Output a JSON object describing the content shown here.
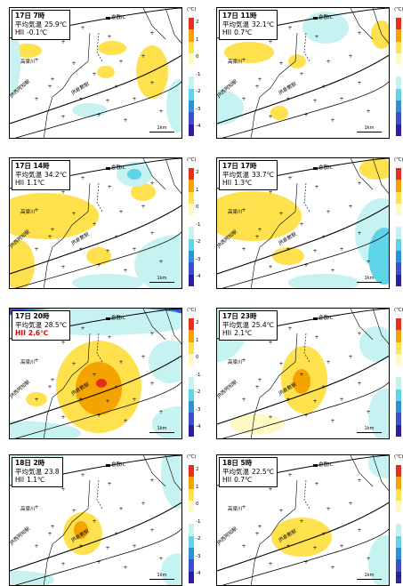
{
  "common": {
    "unit": "(℃)",
    "legend_ticks": [
      "2",
      "1",
      "0",
      "-1",
      "-2",
      "-3",
      "-4"
    ],
    "legend_colors": [
      "#e62e1e",
      "#f5a300",
      "#ffe14d",
      "#fff9c4",
      "#ffffff",
      "#c6f2f2",
      "#5fd3e8",
      "#2d8fd8",
      "#3b4fcf",
      "#2a1f9e"
    ],
    "labels": {
      "ic": "倉敷IC",
      "river": "高梁川",
      "jr_kurashiki": "JR倉敷駅",
      "jr_nishi_achi": "JR西阿知駅",
      "scale": "1km"
    }
  },
  "panels": [
    {
      "title": "17日 7時",
      "avg_label": "平均気温",
      "avg_value": "25.9℃",
      "hii_label": "HII",
      "hii_value": "-0.1℃",
      "hii_highlight": false
    },
    {
      "title": "17日 11時",
      "avg_label": "平均気温",
      "avg_value": "32.1℃",
      "hii_label": "HII",
      "hii_value": "0.7℃",
      "hii_highlight": false
    },
    {
      "title": "17日 14時",
      "avg_label": "平均気温",
      "avg_value": "34.2℃",
      "hii_label": "HII",
      "hii_value": "1.1℃",
      "hii_highlight": false
    },
    {
      "title": "17日 17時",
      "avg_label": "平均気温",
      "avg_value": "33.7℃",
      "hii_label": "HII",
      "hii_value": "1.3℃",
      "hii_highlight": false
    },
    {
      "title": "17日 20時",
      "avg_label": "平均気温",
      "avg_value": "28.5℃",
      "hii_label": "HII",
      "hii_value": "2.6℃",
      "hii_highlight": true
    },
    {
      "title": "17日 23時",
      "avg_label": "平均気温",
      "avg_value": "25.4℃",
      "hii_label": "HII",
      "hii_value": "2.1℃",
      "hii_highlight": false
    },
    {
      "title": "18日 2時",
      "avg_label": "平均気温",
      "avg_value": "23.8",
      "hii_label": "HII",
      "hii_value": "1.1℃",
      "hii_highlight": false
    },
    {
      "title": "18日 5時",
      "avg_label": "平均気温",
      "avg_value": "22.5℃",
      "hii_label": "HII",
      "hii_value": "0.7℃",
      "hii_highlight": false
    }
  ],
  "return_mark": "↵"
}
